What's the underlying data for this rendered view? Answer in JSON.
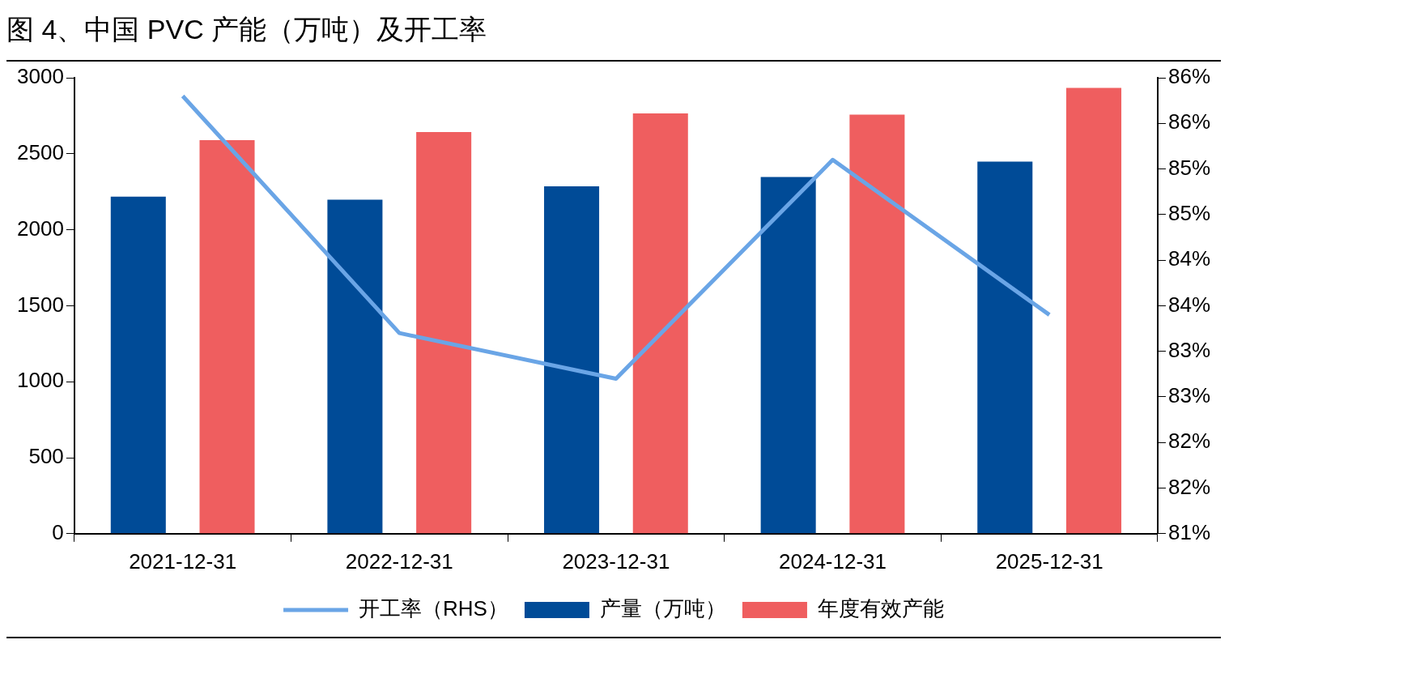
{
  "chart_data": {
    "type": "bar",
    "title": "图 4、中国 PVC 产能（万吨）及开工率",
    "categories": [
      "2021-12-31",
      "2022-12-31",
      "2023-12-31",
      "2024-12-31",
      "2025-12-31"
    ],
    "series": [
      {
        "name": "产量（万吨）",
        "color": "#004b97",
        "values": [
          2218,
          2198,
          2286,
          2347,
          2448
        ]
      },
      {
        "name": "年度有效产能",
        "color": "#ef5e5f",
        "values": [
          2589,
          2643,
          2765,
          2758,
          2933
        ]
      },
      {
        "name": "开工率（RHS）",
        "type": "line",
        "axis": "y2",
        "color": "#6aa5e6",
        "marker": "none",
        "values": [
          85.8,
          83.2,
          82.7,
          85.1,
          83.4
        ]
      }
    ],
    "ylim": [
      0,
      3000
    ],
    "yticks": [
      0,
      500,
      1000,
      1500,
      2000,
      2500,
      3000
    ],
    "y2lim": [
      81,
      86
    ],
    "y2ticks": [
      {
        "value": 81,
        "label": "81%"
      },
      {
        "value": 81.5,
        "label": "82%"
      },
      {
        "value": 82,
        "label": "82%"
      },
      {
        "value": 82.5,
        "label": "83%"
      },
      {
        "value": 83,
        "label": "83%"
      },
      {
        "value": 83.5,
        "label": "84%"
      },
      {
        "value": 84,
        "label": "84%"
      },
      {
        "value": 84.5,
        "label": "85%"
      },
      {
        "value": 85,
        "label": "85%"
      },
      {
        "value": 85.5,
        "label": "86%"
      },
      {
        "value": 86,
        "label": "86%"
      }
    ],
    "grid": false,
    "legend": "bottom"
  }
}
